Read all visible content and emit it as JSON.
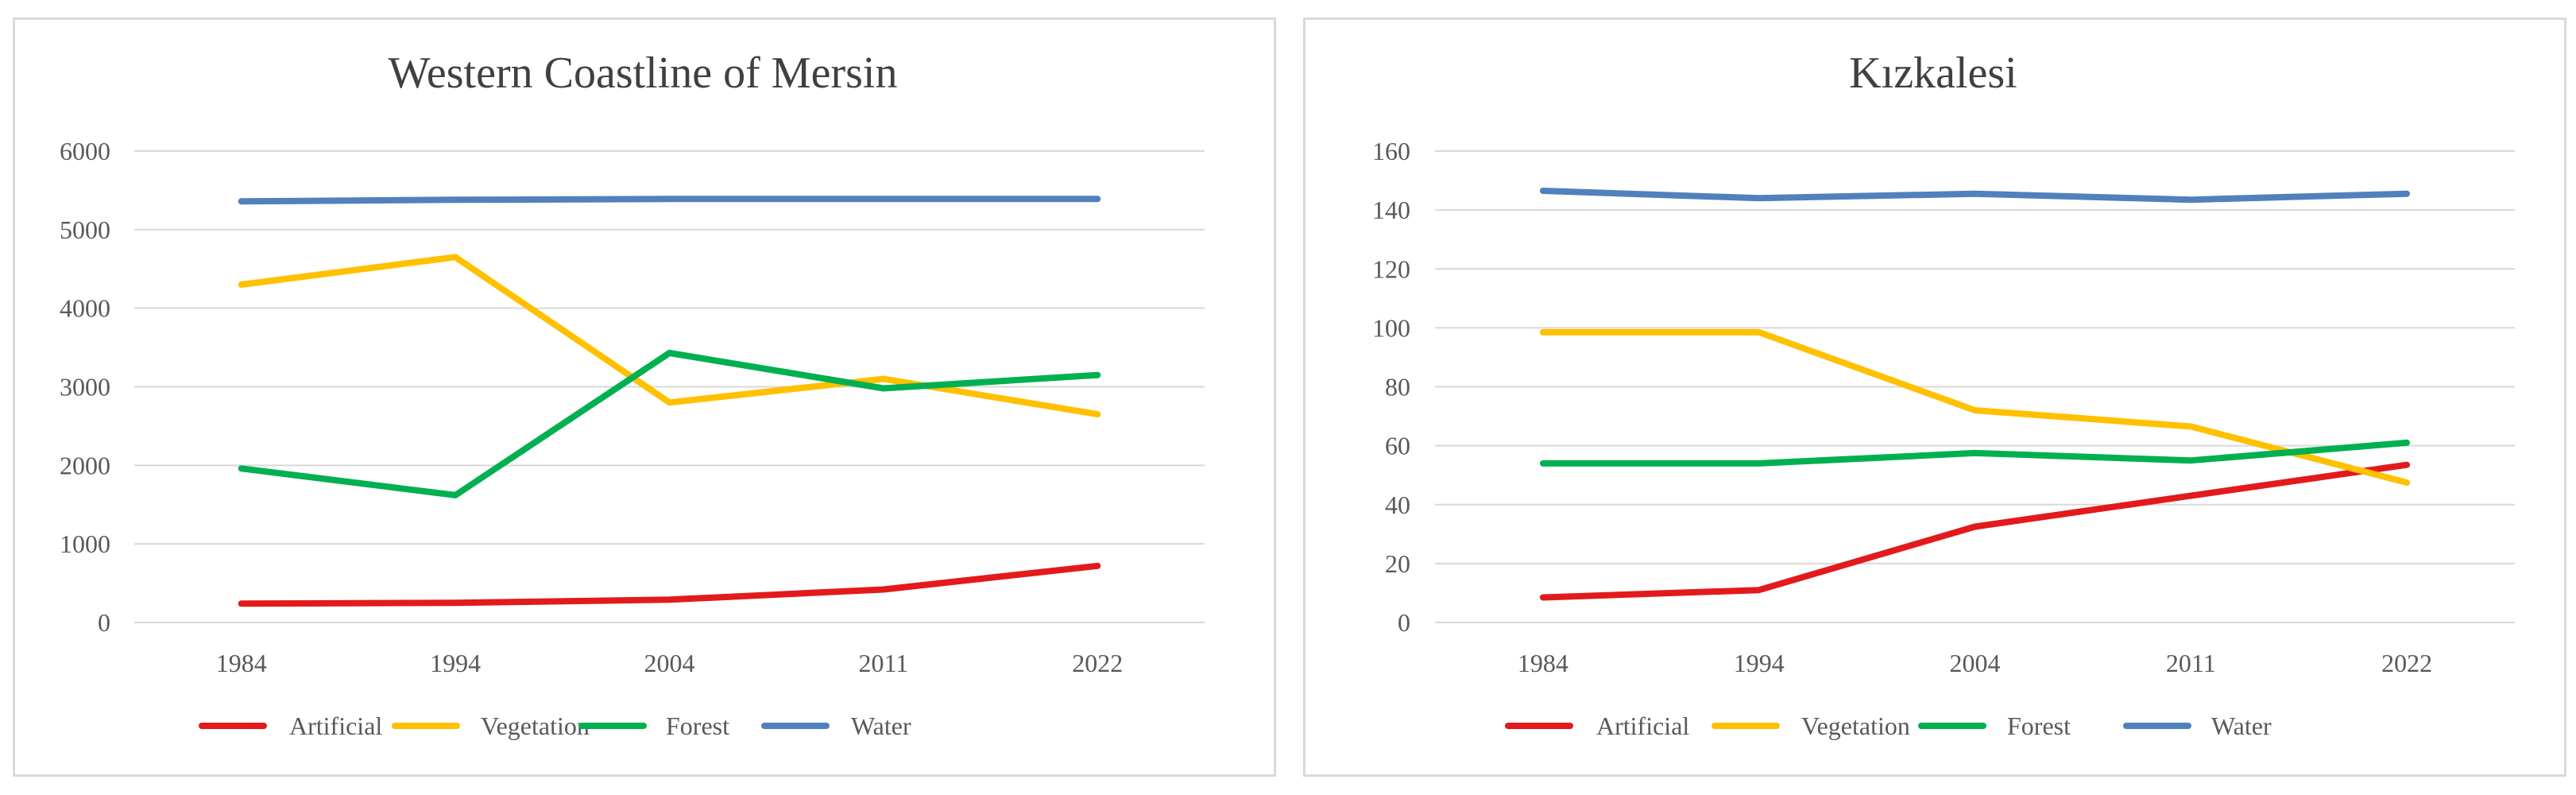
{
  "chart_data": [
    {
      "type": "line",
      "title": "Western Coastline of Mersin",
      "categories": [
        "1984",
        "1994",
        "2004",
        "2011",
        "2022"
      ],
      "ylim": [
        0,
        6000
      ],
      "yticks": [
        0,
        1000,
        2000,
        3000,
        4000,
        5000,
        6000
      ],
      "grid": true,
      "legend_position": "bottom",
      "series": [
        {
          "name": "Artificial",
          "color": "#e31a1c",
          "values": [
            240,
            250,
            290,
            420,
            720
          ]
        },
        {
          "name": "Vegetation",
          "color": "#ffc000",
          "values": [
            4300,
            4650,
            2800,
            3100,
            2650
          ]
        },
        {
          "name": "Forest",
          "color": "#00b050",
          "values": [
            1960,
            1620,
            3430,
            2980,
            3150
          ]
        },
        {
          "name": "Water",
          "color": "#4f81bd",
          "values": [
            5360,
            5380,
            5390,
            5390,
            5390
          ]
        }
      ]
    },
    {
      "type": "line",
      "title": "Kızkalesi",
      "categories": [
        "1984",
        "1994",
        "2004",
        "2011",
        "2022"
      ],
      "ylim": [
        0,
        160
      ],
      "yticks": [
        0,
        20,
        40,
        60,
        80,
        100,
        120,
        140,
        160
      ],
      "grid": true,
      "legend_position": "bottom",
      "series": [
        {
          "name": "Artificial",
          "color": "#e31a1c",
          "values": [
            8.5,
            11,
            32.5,
            43,
            53.5
          ]
        },
        {
          "name": "Vegetation",
          "color": "#ffc000",
          "values": [
            98.5,
            98.5,
            72,
            66.5,
            47.5
          ]
        },
        {
          "name": "Forest",
          "color": "#00b050",
          "values": [
            54,
            54,
            57.5,
            55,
            61
          ]
        },
        {
          "name": "Water",
          "color": "#4f81bd",
          "values": [
            146.5,
            144,
            145.5,
            143.5,
            145.5
          ]
        }
      ]
    }
  ]
}
